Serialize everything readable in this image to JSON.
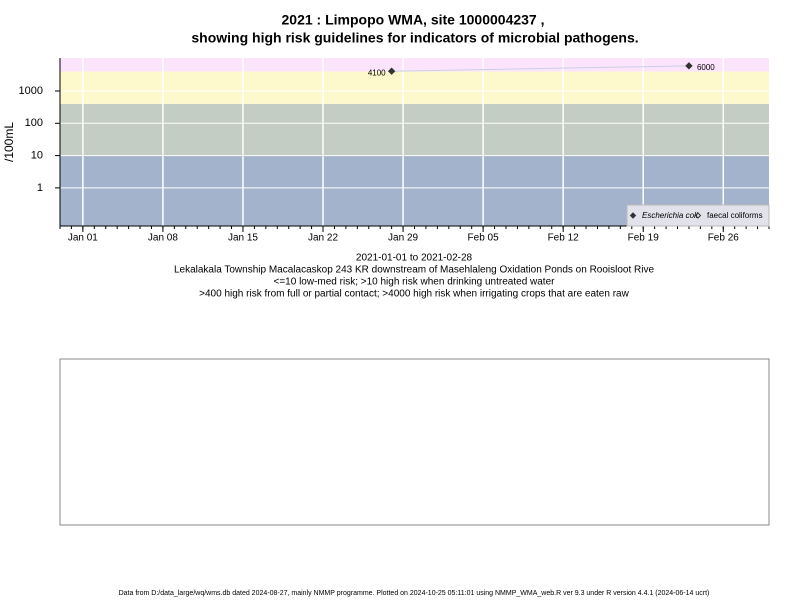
{
  "chart_data": {
    "type": "line",
    "title": "2021 : Limpopo WMA, site 1000004237 ,",
    "subtitle": "showing high risk guidelines for indicators of microbial pathogens.",
    "ylabel": "/100mL",
    "xlabel": "2021-01-01 to 2021-02-28",
    "notes": [
      "Lekalakala Township Macalacaskop 243 KR downstream of Masehlaleng Oxidation Ponds on Rooisloot Rive",
      "<=10 low-med risk; >10 high risk when drinking untreated water",
      ">400 high risk from full or partial contact; >4000 high risk when irrigating crops that are eaten raw"
    ],
    "footer": "Data from D:/data_large/wq/wms.db dated 2024-08-27, mainly NMMP programme. Plotted on 2024-10-25 05:11:01 using NMMP_WMA_web.R ver 9.3 under R version 4.4.1 (2024-06-14 ucrt)",
    "x": [
      "2021-01-28",
      "2021-02-23"
    ],
    "series": [
      {
        "name": "Escherichia coli",
        "color": "#333333",
        "values": [
          4100,
          6000
        ]
      },
      {
        "name": "faecal coliforms",
        "color": "#333333",
        "values": [
          null,
          null
        ]
      }
    ],
    "bands": [
      {
        "upper": 10,
        "color": "#a3b3cc"
      },
      {
        "upper": 400,
        "color": "#c4cdc4"
      },
      {
        "upper": 4000,
        "color": "#fdf9cc"
      },
      {
        "upper": null,
        "color": "#fde4fd"
      }
    ],
    "log_y": true,
    "grid": true,
    "legend": "bottom-right",
    "xlim": [
      "2020-12-30",
      "2021-03-02"
    ],
    "xticks": [
      {
        "value": "2021-01-01",
        "label": "Jan 01"
      },
      {
        "value": "2021-01-08",
        "label": "Jan 08"
      },
      {
        "value": "2021-01-15",
        "label": "Jan 15"
      },
      {
        "value": "2021-01-22",
        "label": "Jan 22"
      },
      {
        "value": "2021-01-29",
        "label": "Jan 29"
      },
      {
        "value": "2021-02-05",
        "label": "Feb 05"
      },
      {
        "value": "2021-02-12",
        "label": "Feb 12"
      },
      {
        "value": "2021-02-19",
        "label": "Feb 19"
      },
      {
        "value": "2021-02-26",
        "label": "Feb 26"
      }
    ],
    "ylim": [
      0.066,
      10500
    ],
    "yticks": [
      1,
      10,
      100,
      1000
    ]
  }
}
